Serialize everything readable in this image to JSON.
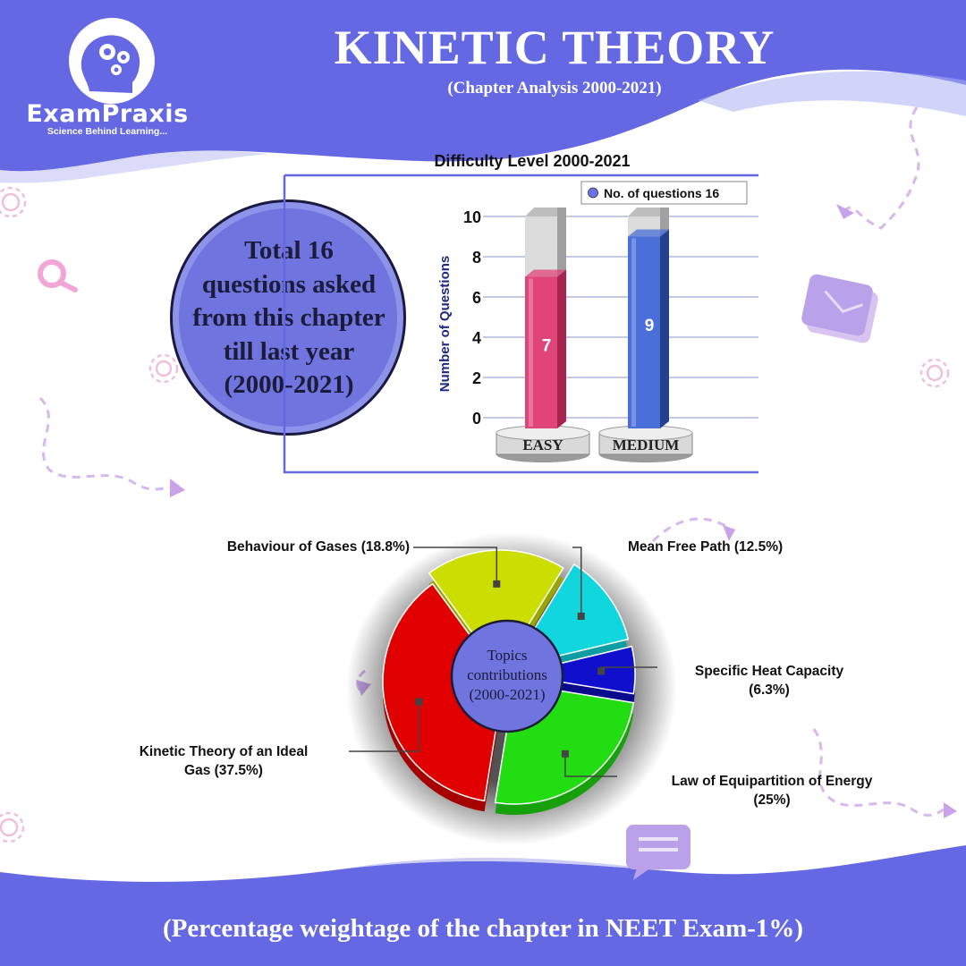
{
  "brand": {
    "name": "ExamPraxis",
    "tagline": "Science Behind Learning...",
    "logo_icon": "head-gears-icon"
  },
  "header": {
    "title": "KINETIC THEORY",
    "subtitle": "(Chapter Analysis 2000-2021)"
  },
  "summary": {
    "line1": "Total 16",
    "line2": "questions asked",
    "line3": "from this chapter",
    "line4": "till last year",
    "line5": "(2000-2021)"
  },
  "footer": {
    "text": "(Percentage weightage of the chapter in NEET Exam-1%)"
  },
  "colors": {
    "brand_purple": "#6a6fe0",
    "easy_bar": "#e0457a",
    "medium_bar": "#4a6fd8",
    "pie_red": "#e00000",
    "pie_yellow": "#ccdd00",
    "pie_cyan": "#11d6dd",
    "pie_blue": "#1010cc",
    "pie_green": "#22dd11"
  },
  "chart_data": [
    {
      "type": "bar",
      "title": "Difficulty Level 2000-2021",
      "categories": [
        "EASY",
        "MEDIUM"
      ],
      "series": [
        {
          "name": "No. of questions 16",
          "values": [
            7,
            9
          ]
        }
      ],
      "ylabel": "Number of Questions",
      "xlabel": "",
      "ylim": [
        0,
        10
      ],
      "yticks": [
        "0",
        "2",
        "4",
        "6",
        "8",
        "10"
      ],
      "data_labels": [
        "7",
        "9"
      ],
      "grid": true,
      "legend": "top-right"
    },
    {
      "type": "pie",
      "center_label": [
        "Topics",
        "contributions",
        "(2000-2021)"
      ],
      "slices": [
        {
          "label_lines": [
            "Behaviour of Gases (18.8%)"
          ],
          "value": 18.8
        },
        {
          "label_lines": [
            "Mean Free Path (12.5%)"
          ],
          "value": 12.5
        },
        {
          "label_lines": [
            "Specific Heat Capacity",
            "(6.3%)"
          ],
          "value": 6.3
        },
        {
          "label_lines": [
            "Law of Equipartition of Energy",
            "(25%)"
          ],
          "value": 25
        },
        {
          "label_lines": [
            "Kinetic Theory of an Ideal",
            "Gas (37.5%)"
          ],
          "value": 37.5
        }
      ]
    }
  ]
}
